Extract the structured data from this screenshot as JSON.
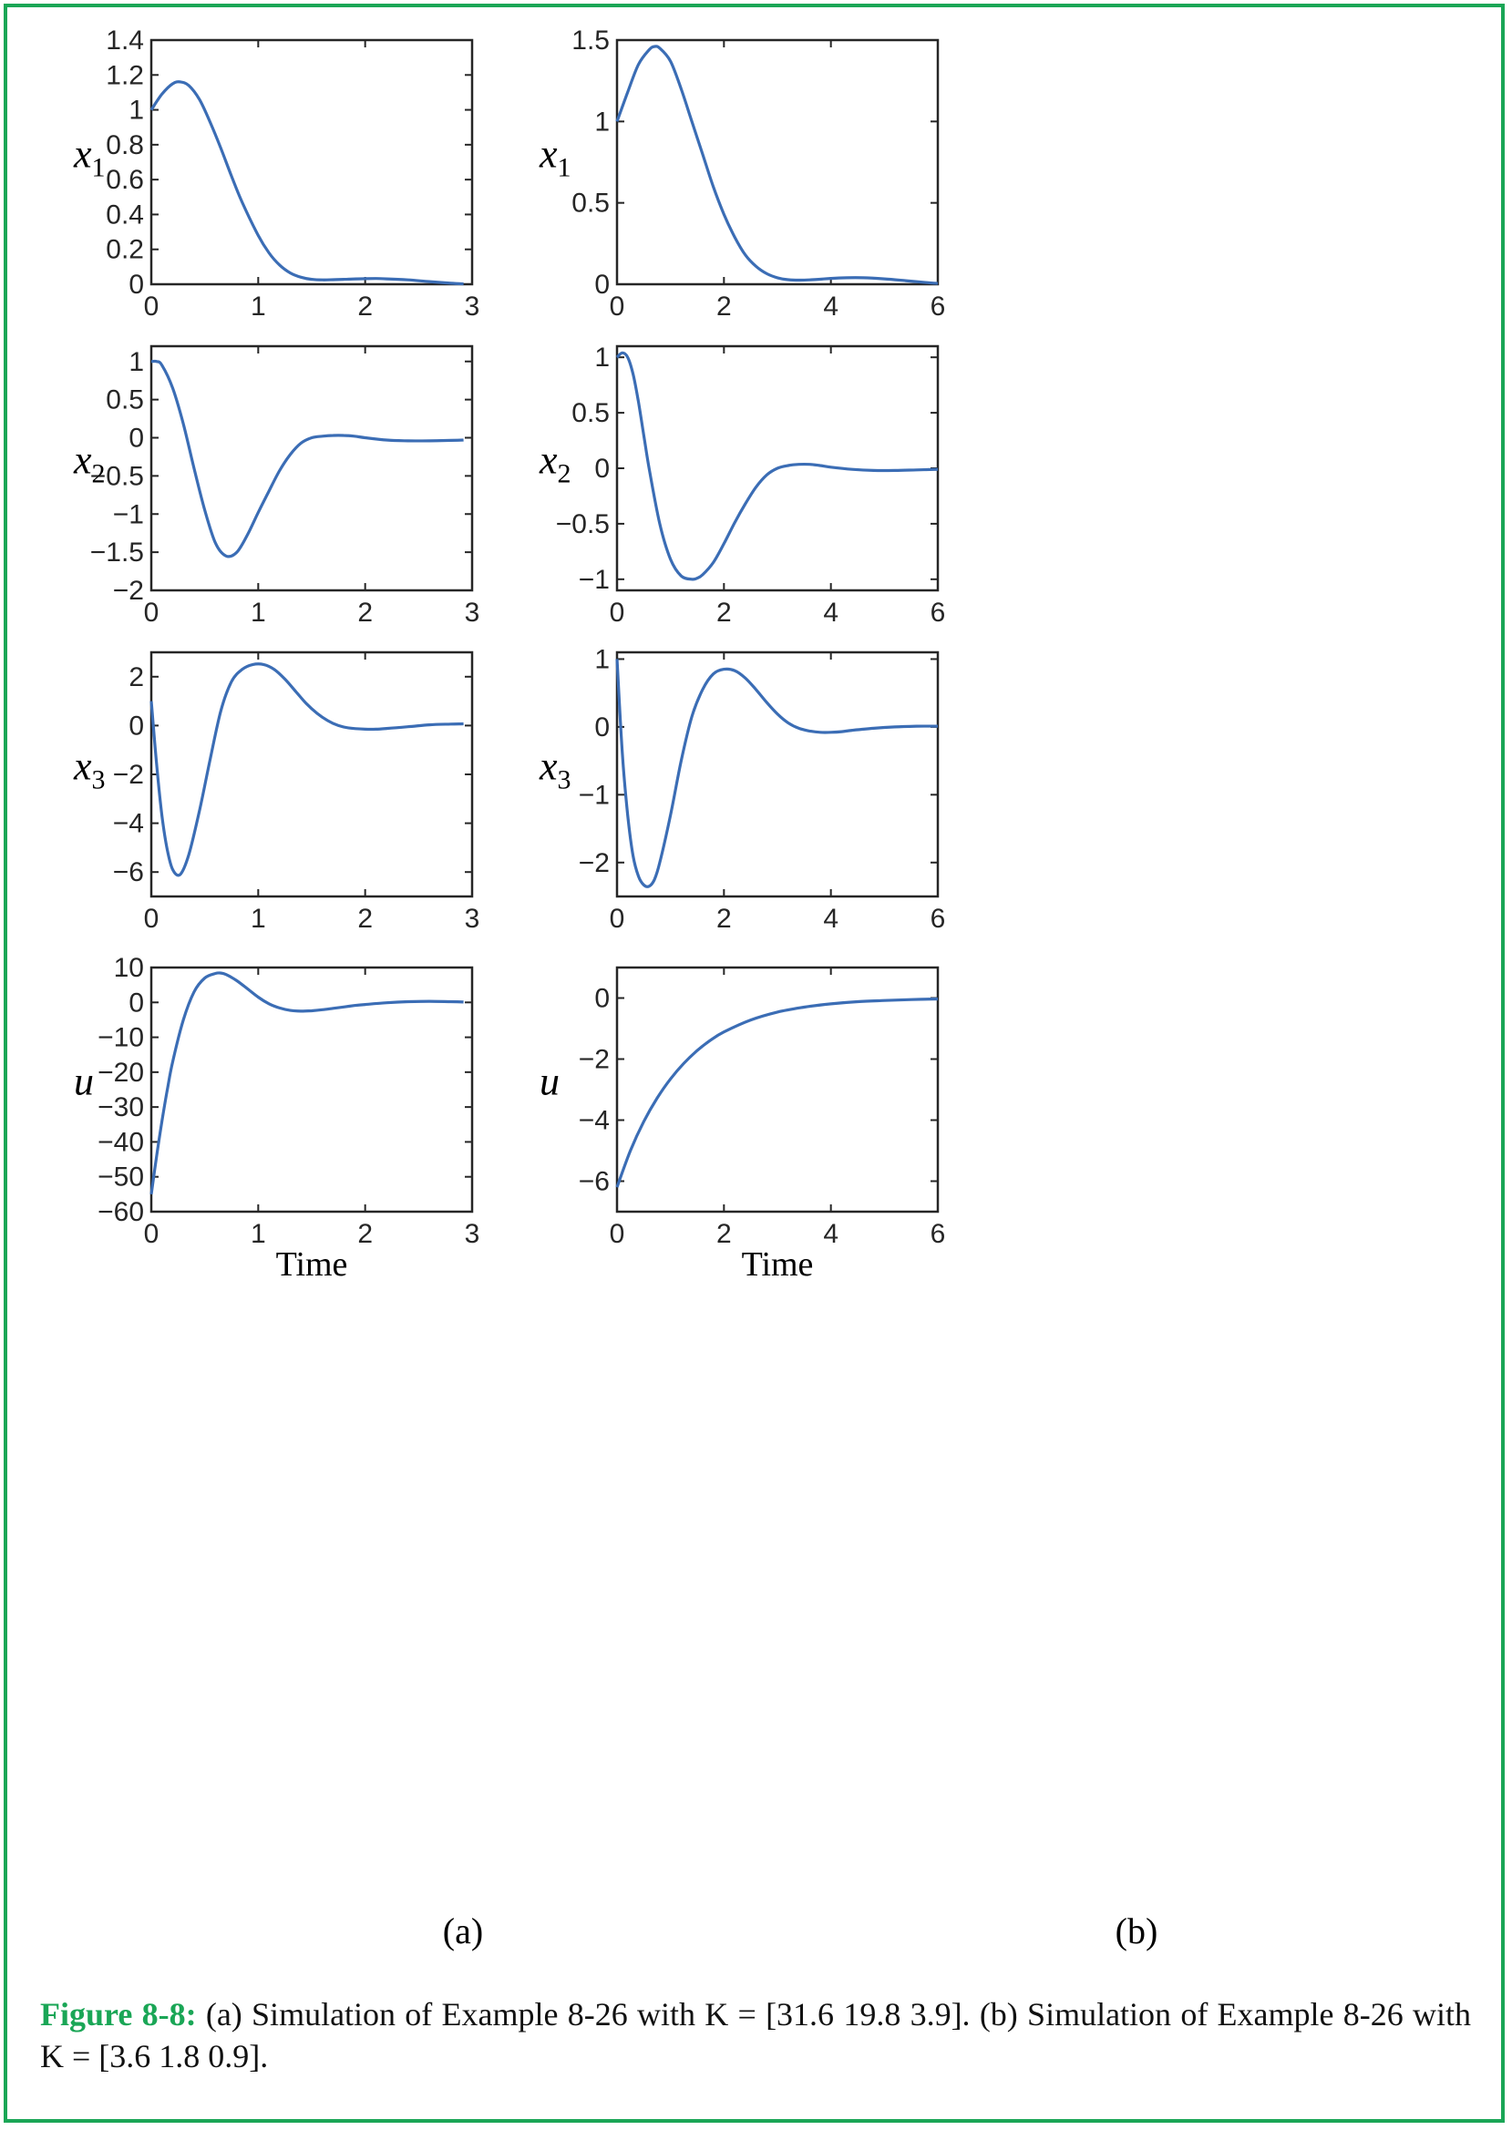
{
  "panel_labels": [
    "(a)",
    "(b)"
  ],
  "caption": {
    "figure_id": "Figure 8-8:",
    "text": "(a) Simulation of Example 8-26 with K = [31.6   19.8   3.9]. (b) Simulation of Example 8-26 with K = [3.6  1.8  0.9]."
  },
  "colors": {
    "line": "#3b6db5",
    "axes": "#262626",
    "frame": "#1aa656",
    "caption_accent": "#1aa656"
  },
  "chart_data": [
    {
      "id": "a-x1",
      "type": "line",
      "xlabel": "",
      "ylabel": "x",
      "ylabel_sub": "1",
      "xlim": [
        0,
        3
      ],
      "ylim": [
        0,
        1.4
      ],
      "xticks": [
        "0",
        "1",
        "2",
        "3"
      ],
      "xtick_values": [
        0,
        1,
        2,
        3
      ],
      "yticks": [
        "0",
        "0.2",
        "0.4",
        "0.6",
        "0.8",
        "1",
        "1.2",
        "1.4"
      ],
      "ytick_values": [
        0,
        0.2,
        0.4,
        0.6,
        0.8,
        1,
        1.2,
        1.4
      ],
      "series": [
        {
          "x": [
            0,
            0.1,
            0.2,
            0.27,
            0.35,
            0.45,
            0.55,
            0.65,
            0.75,
            0.85,
            1.0,
            1.1,
            1.2,
            1.3,
            1.4,
            1.5,
            1.6,
            1.7,
            1.8,
            2.0,
            2.1,
            2.2,
            2.4,
            2.6,
            2.8,
            2.92
          ],
          "y": [
            1.0,
            1.09,
            1.15,
            1.16,
            1.14,
            1.06,
            0.93,
            0.78,
            0.62,
            0.47,
            0.28,
            0.18,
            0.11,
            0.065,
            0.04,
            0.028,
            0.025,
            0.026,
            0.028,
            0.032,
            0.033,
            0.031,
            0.025,
            0.015,
            0.006,
            0.002
          ]
        }
      ]
    },
    {
      "id": "b-x1",
      "type": "line",
      "xlabel": "",
      "ylabel": "x",
      "ylabel_sub": "1",
      "xlim": [
        0,
        6
      ],
      "ylim": [
        0,
        1.5
      ],
      "xticks": [
        "0",
        "2",
        "4",
        "6"
      ],
      "xtick_values": [
        0,
        2,
        4,
        6
      ],
      "yticks": [
        "0",
        "0.5",
        "1",
        "1.5"
      ],
      "ytick_values": [
        0,
        0.5,
        1,
        1.5
      ],
      "series": [
        {
          "x": [
            0,
            0.2,
            0.4,
            0.6,
            0.7,
            0.8,
            1.0,
            1.2,
            1.4,
            1.6,
            1.8,
            2.0,
            2.2,
            2.4,
            2.6,
            2.8,
            3.0,
            3.2,
            3.4,
            3.6,
            3.8,
            4.0,
            4.3,
            4.6,
            5.0,
            5.4,
            5.8,
            6.0
          ],
          "y": [
            1.0,
            1.18,
            1.35,
            1.44,
            1.46,
            1.45,
            1.37,
            1.2,
            1.0,
            0.8,
            0.6,
            0.43,
            0.29,
            0.18,
            0.11,
            0.065,
            0.04,
            0.028,
            0.025,
            0.027,
            0.031,
            0.036,
            0.04,
            0.04,
            0.033,
            0.022,
            0.01,
            0.005
          ]
        }
      ]
    },
    {
      "id": "a-x2",
      "type": "line",
      "xlabel": "",
      "ylabel": "x",
      "ylabel_sub": "2",
      "xlim": [
        0,
        3
      ],
      "ylim": [
        -2,
        1.2
      ],
      "xticks": [
        "0",
        "1",
        "2",
        "3"
      ],
      "xtick_values": [
        0,
        1,
        2,
        3
      ],
      "yticks": [
        "−2",
        "−1.5",
        "−1",
        "−0.5",
        "0",
        "0.5",
        "1"
      ],
      "ytick_values": [
        -2,
        -1.5,
        -1,
        -0.5,
        0,
        0.5,
        1
      ],
      "series": [
        {
          "x": [
            0,
            0.05,
            0.1,
            0.2,
            0.3,
            0.4,
            0.5,
            0.6,
            0.7,
            0.8,
            0.9,
            1.0,
            1.1,
            1.2,
            1.3,
            1.4,
            1.5,
            1.6,
            1.7,
            1.8,
            1.9,
            2.0,
            2.2,
            2.4,
            2.6,
            2.8,
            2.92
          ],
          "y": [
            1.0,
            1.0,
            0.95,
            0.65,
            0.18,
            -0.4,
            -0.95,
            -1.38,
            -1.55,
            -1.5,
            -1.27,
            -0.98,
            -0.7,
            -0.43,
            -0.22,
            -0.07,
            0.0,
            0.02,
            0.03,
            0.03,
            0.02,
            0.0,
            -0.03,
            -0.04,
            -0.04,
            -0.035,
            -0.03
          ]
        }
      ]
    },
    {
      "id": "b-x2",
      "type": "line",
      "xlabel": "",
      "ylabel": "x",
      "ylabel_sub": "2",
      "xlim": [
        0,
        6
      ],
      "ylim": [
        -1.1,
        1.1
      ],
      "xticks": [
        "0",
        "2",
        "4",
        "6"
      ],
      "xtick_values": [
        0,
        2,
        4,
        6
      ],
      "yticks": [
        "−1",
        "−0.5",
        "0",
        "0.5",
        "1"
      ],
      "ytick_values": [
        -1,
        -0.5,
        0,
        0.5,
        1
      ],
      "series": [
        {
          "x": [
            0,
            0.1,
            0.2,
            0.3,
            0.4,
            0.5,
            0.6,
            0.8,
            1.0,
            1.2,
            1.4,
            1.5,
            1.6,
            1.8,
            2.0,
            2.2,
            2.4,
            2.6,
            2.8,
            3.0,
            3.2,
            3.4,
            3.6,
            3.8,
            4.0,
            4.4,
            4.8,
            5.2,
            5.6,
            6.0
          ],
          "y": [
            1.0,
            1.04,
            1.0,
            0.85,
            0.6,
            0.3,
            0.0,
            -0.5,
            -0.82,
            -0.97,
            -1.0,
            -0.99,
            -0.96,
            -0.85,
            -0.68,
            -0.49,
            -0.32,
            -0.17,
            -0.06,
            0.0,
            0.025,
            0.035,
            0.035,
            0.025,
            0.01,
            -0.01,
            -0.02,
            -0.02,
            -0.015,
            -0.01
          ]
        }
      ]
    },
    {
      "id": "a-x3",
      "type": "line",
      "xlabel": "",
      "ylabel": "x",
      "ylabel_sub": "3",
      "xlim": [
        0,
        3
      ],
      "ylim": [
        -7,
        3
      ],
      "xticks": [
        "0",
        "1",
        "2",
        "3"
      ],
      "xtick_values": [
        0,
        1,
        2,
        3
      ],
      "yticks": [
        "−6",
        "−4",
        "−2",
        "0",
        "2"
      ],
      "ytick_values": [
        -6,
        -4,
        -2,
        0,
        2
      ],
      "series": [
        {
          "x": [
            0,
            0.05,
            0.1,
            0.15,
            0.2,
            0.27,
            0.35,
            0.45,
            0.55,
            0.65,
            0.75,
            0.85,
            0.95,
            1.05,
            1.15,
            1.25,
            1.35,
            1.45,
            1.55,
            1.65,
            1.75,
            1.85,
            2.0,
            2.1,
            2.2,
            2.4,
            2.6,
            2.8,
            2.92
          ],
          "y": [
            1.0,
            -1.6,
            -3.7,
            -5.1,
            -5.9,
            -6.1,
            -5.3,
            -3.5,
            -1.4,
            0.6,
            1.8,
            2.3,
            2.5,
            2.5,
            2.3,
            1.9,
            1.4,
            0.9,
            0.5,
            0.2,
            0.0,
            -0.1,
            -0.15,
            -0.15,
            -0.12,
            -0.05,
            0.03,
            0.06,
            0.07
          ]
        }
      ]
    },
    {
      "id": "b-x3",
      "type": "line",
      "xlabel": "",
      "ylabel": "x",
      "ylabel_sub": "3",
      "xlim": [
        0,
        6
      ],
      "ylim": [
        -2.5,
        1.1
      ],
      "xticks": [
        "0",
        "2",
        "4",
        "6"
      ],
      "xtick_values": [
        0,
        2,
        4,
        6
      ],
      "yticks": [
        "−2",
        "−1",
        "0",
        "1"
      ],
      "ytick_values": [
        -2,
        -1,
        0,
        1
      ],
      "series": [
        {
          "x": [
            0,
            0.1,
            0.2,
            0.3,
            0.4,
            0.5,
            0.6,
            0.7,
            0.8,
            1.0,
            1.2,
            1.4,
            1.6,
            1.8,
            2.0,
            2.2,
            2.4,
            2.6,
            2.8,
            3.0,
            3.2,
            3.4,
            3.6,
            3.8,
            4.0,
            4.2,
            4.4,
            4.8,
            5.2,
            5.6,
            6.0
          ],
          "y": [
            1.0,
            -0.4,
            -1.3,
            -1.9,
            -2.2,
            -2.33,
            -2.35,
            -2.25,
            -2.0,
            -1.3,
            -0.5,
            0.15,
            0.55,
            0.78,
            0.85,
            0.83,
            0.72,
            0.55,
            0.36,
            0.19,
            0.06,
            -0.02,
            -0.06,
            -0.08,
            -0.08,
            -0.07,
            -0.05,
            -0.02,
            0.0,
            0.01,
            0.01
          ]
        }
      ]
    },
    {
      "id": "a-u",
      "type": "line",
      "xlabel": "Time",
      "ylabel": "u",
      "ylabel_sub": "",
      "xlim": [
        0,
        3
      ],
      "ylim": [
        -60,
        10
      ],
      "xticks": [
        "0",
        "1",
        "2",
        "3"
      ],
      "xtick_values": [
        0,
        1,
        2,
        3
      ],
      "yticks": [
        "−60",
        "−50",
        "−40",
        "−30",
        "−20",
        "−10",
        "0",
        "10"
      ],
      "ytick_values": [
        -60,
        -50,
        -40,
        -30,
        -20,
        -10,
        0,
        10
      ],
      "series": [
        {
          "x": [
            0,
            0.05,
            0.1,
            0.15,
            0.2,
            0.3,
            0.4,
            0.5,
            0.6,
            0.65,
            0.7,
            0.8,
            0.9,
            1.0,
            1.1,
            1.2,
            1.3,
            1.4,
            1.5,
            1.6,
            1.7,
            1.8,
            1.9,
            2.0,
            2.2,
            2.4,
            2.6,
            2.8,
            2.92
          ],
          "y": [
            -55,
            -44,
            -34,
            -25,
            -17,
            -5,
            3,
            7,
            8.3,
            8.4,
            8.0,
            6.2,
            3.9,
            1.5,
            -0.4,
            -1.6,
            -2.3,
            -2.5,
            -2.4,
            -2.1,
            -1.7,
            -1.3,
            -0.9,
            -0.6,
            -0.1,
            0.2,
            0.3,
            0.2,
            0.1
          ]
        }
      ]
    },
    {
      "id": "b-u",
      "type": "line",
      "xlabel": "Time",
      "ylabel": "u",
      "ylabel_sub": "",
      "xlim": [
        0,
        6
      ],
      "ylim": [
        -7,
        1
      ],
      "xticks": [
        "0",
        "2",
        "4",
        "6"
      ],
      "xtick_values": [
        0,
        2,
        4,
        6
      ],
      "yticks": [
        "−6",
        "−4",
        "−2",
        "0"
      ],
      "ytick_values": [
        -6,
        -4,
        -2,
        0
      ],
      "series": [
        {
          "x": [
            0,
            0.25,
            0.5,
            0.75,
            1.0,
            1.25,
            1.5,
            1.75,
            2.0,
            2.5,
            3.0,
            3.5,
            4.0,
            4.5,
            5.0,
            5.5,
            6.0
          ],
          "y": [
            -6.2,
            -5.0,
            -4.05,
            -3.28,
            -2.65,
            -2.14,
            -1.72,
            -1.38,
            -1.11,
            -0.72,
            -0.46,
            -0.3,
            -0.19,
            -0.12,
            -0.08,
            -0.05,
            -0.03
          ]
        }
      ]
    }
  ]
}
